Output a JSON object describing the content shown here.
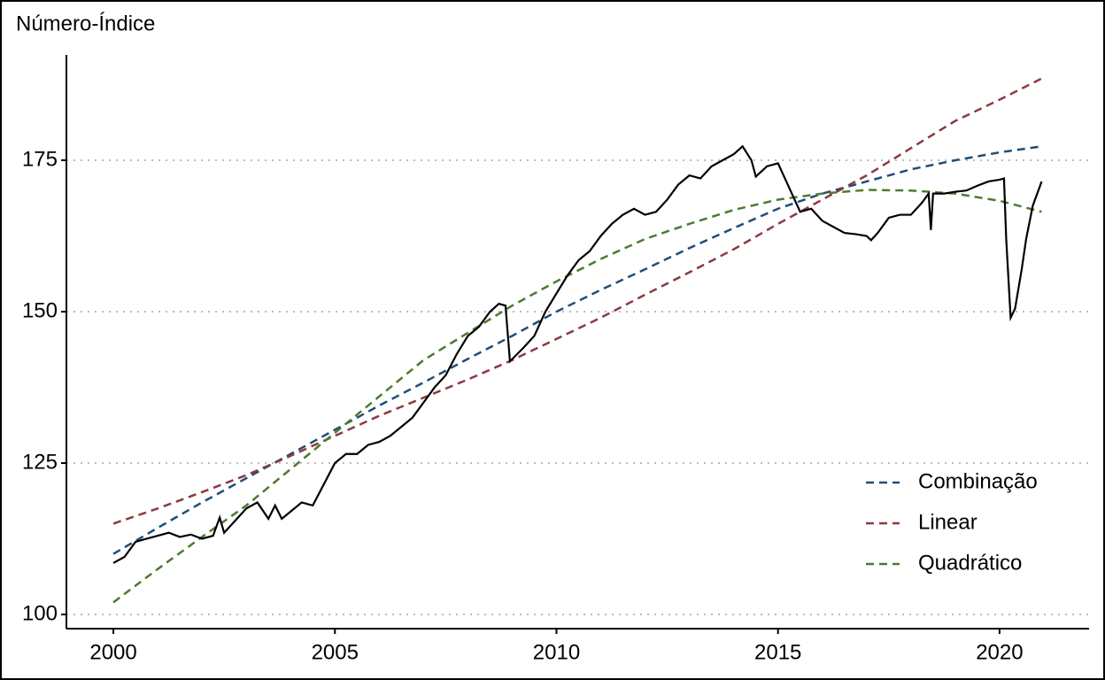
{
  "chart_data": {
    "type": "line",
    "y_label": "Número-Índice",
    "xlim": [
      1998.94,
      2022.02
    ],
    "xticks": [
      2000,
      2005,
      2010,
      2015,
      2020
    ],
    "ylim": [
      97.66,
      192.4
    ],
    "yticks": [
      100,
      125,
      150,
      175
    ],
    "grid": true,
    "legend": "bottom-right",
    "series": [
      {
        "name": "Índice",
        "color": "#000000",
        "legend": false,
        "x": [
          2000.0,
          2000.25,
          2000.5,
          2000.75,
          2001.0,
          2001.25,
          2001.5,
          2001.75,
          2002.0,
          2002.25,
          2002.4,
          2002.5,
          2002.75,
          2003.0,
          2003.25,
          2003.5,
          2003.65,
          2003.8,
          2004.0,
          2004.25,
          2004.5,
          2004.75,
          2005.0,
          2005.25,
          2005.5,
          2005.75,
          2006.0,
          2006.25,
          2006.5,
          2006.75,
          2007.0,
          2007.25,
          2007.5,
          2007.75,
          2008.0,
          2008.25,
          2008.5,
          2008.7,
          2008.85,
          2008.95,
          2009.25,
          2009.5,
          2009.75,
          2010.0,
          2010.25,
          2010.5,
          2010.75,
          2011.0,
          2011.25,
          2011.5,
          2011.75,
          2012.0,
          2012.25,
          2012.5,
          2012.75,
          2013.0,
          2013.25,
          2013.5,
          2013.75,
          2014.0,
          2014.2,
          2014.4,
          2014.5,
          2014.75,
          2015.0,
          2015.25,
          2015.5,
          2015.75,
          2016.0,
          2016.25,
          2016.5,
          2016.75,
          2017.0,
          2017.1,
          2017.25,
          2017.5,
          2017.75,
          2018.0,
          2018.25,
          2018.4,
          2018.45,
          2018.5,
          2018.75,
          2019.0,
          2019.25,
          2019.5,
          2019.75,
          2020.0,
          2020.1,
          2020.15,
          2020.25,
          2020.35,
          2020.5,
          2020.6,
          2020.75,
          2020.95
        ],
        "values": [
          108.5,
          109.5,
          112,
          112.5,
          113,
          113.5,
          112.8,
          113.2,
          112.5,
          113,
          116,
          113.5,
          115.5,
          117.5,
          118.5,
          115.8,
          118,
          115.8,
          117,
          118.5,
          118,
          121.5,
          125,
          126.5,
          126.5,
          128,
          128.5,
          129.5,
          131,
          132.5,
          135,
          137.5,
          139.5,
          143,
          146,
          147.5,
          150,
          151.3,
          151,
          141.8,
          144,
          146,
          150,
          153,
          156,
          158.5,
          160,
          162.5,
          164.5,
          166,
          167,
          166,
          166.5,
          168.5,
          171,
          172.5,
          172,
          174,
          175,
          176,
          177.3,
          175,
          172.3,
          174,
          174.5,
          170.5,
          166.5,
          167,
          165,
          164,
          163,
          162.8,
          162.5,
          161.8,
          163,
          165.5,
          166,
          166,
          168,
          169.5,
          163.5,
          169.5,
          169.5,
          169.8,
          170,
          170.8,
          171.5,
          171.8,
          172,
          162,
          149,
          150.5,
          157,
          162,
          167.5,
          171.5
        ]
      },
      {
        "name": "Combinação",
        "color": "#1f4e79",
        "dashed": true,
        "x": [
          2000,
          2001,
          2002,
          2003,
          2004,
          2005,
          2006,
          2007,
          2008,
          2009,
          2010,
          2011,
          2012,
          2013,
          2014,
          2015,
          2016,
          2017,
          2018,
          2019,
          2020,
          2020.95
        ],
        "values": [
          110,
          114.3,
          118.5,
          122.5,
          126.5,
          130.5,
          134.5,
          138.3,
          142.2,
          146,
          150,
          153.6,
          157,
          160.5,
          163.8,
          167,
          169.5,
          171.5,
          173.5,
          175,
          176.3,
          177.3
        ]
      },
      {
        "name": "Linear",
        "color": "#8b3a3f",
        "dashed": true,
        "x": [
          2000,
          2001,
          2002,
          2003,
          2004,
          2005,
          2006,
          2007,
          2008,
          2009,
          2010,
          2011,
          2012,
          2013,
          2014,
          2015,
          2016,
          2017,
          2018,
          2019,
          2020,
          2020.95
        ],
        "values": [
          115,
          117.5,
          120.2,
          123,
          126.2,
          129.5,
          132.8,
          135.8,
          138.8,
          142,
          145.5,
          149,
          152.8,
          156.5,
          160.3,
          164.5,
          168.5,
          172.5,
          177,
          181.5,
          185,
          188.5
        ]
      },
      {
        "name": "Quadrático",
        "color": "#4e7a2e",
        "dashed": true,
        "x": [
          2000,
          2001,
          2002,
          2003,
          2004,
          2005,
          2006,
          2007,
          2008,
          2009,
          2010,
          2011,
          2012,
          2013,
          2014,
          2015,
          2016,
          2017,
          2018,
          2019,
          2020,
          2020.95
        ],
        "values": [
          102,
          107.5,
          112.8,
          118,
          124,
          130,
          136,
          142,
          146.5,
          151,
          155,
          158.7,
          162,
          164.5,
          166.8,
          168.5,
          169.5,
          170.1,
          170,
          169.5,
          168.3,
          166.5
        ]
      }
    ]
  }
}
